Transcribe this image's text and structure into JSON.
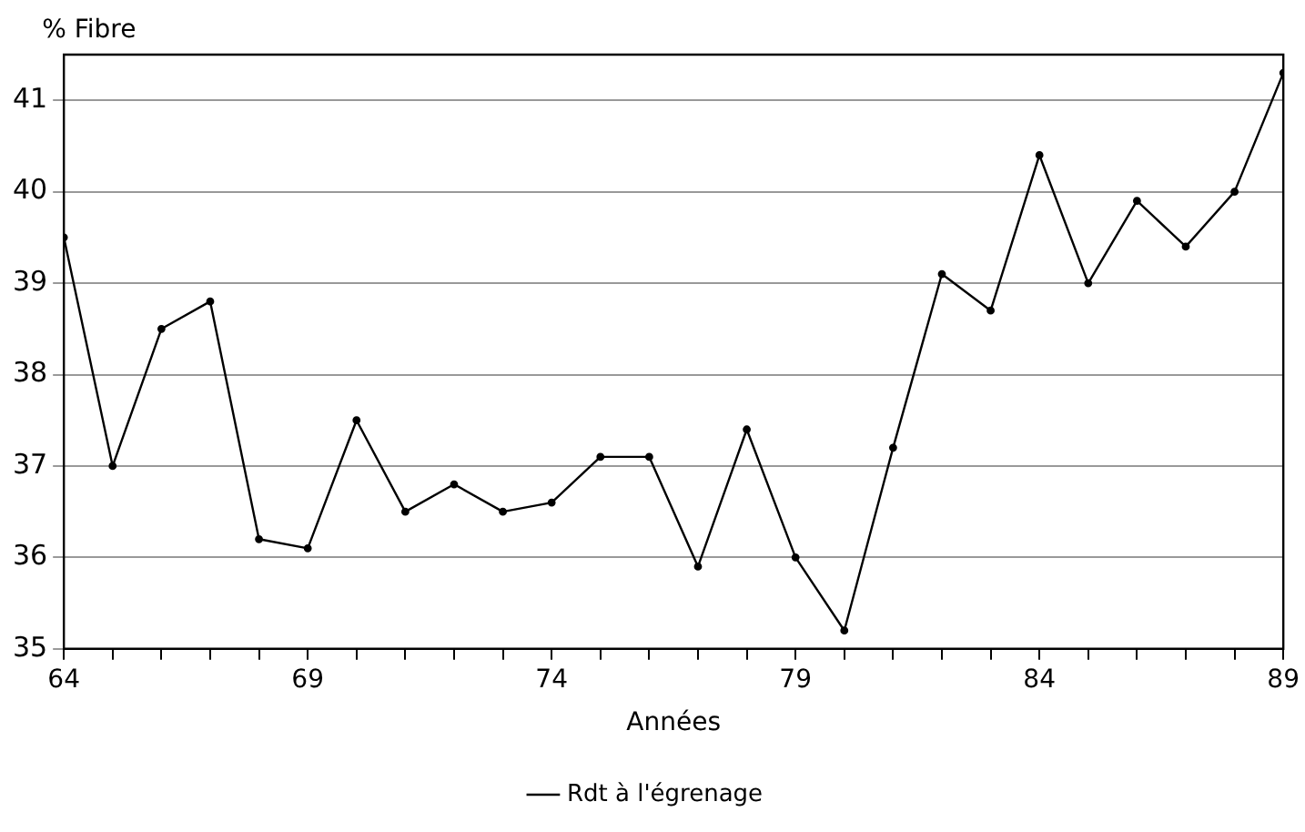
{
  "chart_data": {
    "type": "line",
    "ylabel": "% Fibre",
    "xlabel": "Années",
    "x": [
      64,
      65,
      66,
      67,
      68,
      69,
      70,
      71,
      72,
      73,
      74,
      75,
      76,
      77,
      78,
      79,
      80,
      81,
      82,
      83,
      84,
      85,
      86,
      87,
      88,
      89
    ],
    "series": [
      {
        "name": "Rdt à l'égrenage",
        "color": "#000000",
        "values": [
          39.5,
          37.0,
          38.5,
          38.8,
          36.2,
          36.1,
          37.5,
          36.5,
          36.8,
          36.5,
          36.6,
          37.1,
          37.1,
          35.9,
          37.4,
          36.0,
          35.2,
          37.2,
          39.1,
          38.7,
          40.4,
          39.0,
          39.9,
          39.4,
          40.0,
          41.3
        ]
      }
    ],
    "xlim": [
      64,
      89
    ],
    "xticks": [
      64,
      {
        "value": 65,
        "label": null
      },
      {
        "value": 66,
        "label": null
      },
      {
        "value": 67,
        "label": null
      },
      {
        "value": 68,
        "label": null
      },
      69,
      {
        "value": 70,
        "label": null
      },
      {
        "value": 71,
        "label": null
      },
      {
        "value": 72,
        "label": null
      },
      {
        "value": 73,
        "label": null
      },
      74,
      {
        "value": 75,
        "label": null
      },
      {
        "value": 76,
        "label": null
      },
      {
        "value": 77,
        "label": null
      },
      {
        "value": 78,
        "label": null
      },
      79,
      {
        "value": 80,
        "label": null
      },
      {
        "value": 81,
        "label": null
      },
      {
        "value": 82,
        "label": null
      },
      {
        "value": 83,
        "label": null
      },
      84,
      {
        "value": 85,
        "label": null
      },
      {
        "value": 86,
        "label": null
      },
      {
        "value": 87,
        "label": null
      },
      {
        "value": 88,
        "label": null
      },
      89
    ],
    "ylim": [
      35,
      41.5
    ],
    "yticks": [
      35,
      36,
      37,
      38,
      39,
      40,
      41
    ],
    "grid": "y",
    "legend": "bottom",
    "marker": "circle",
    "line_style": "solid"
  }
}
